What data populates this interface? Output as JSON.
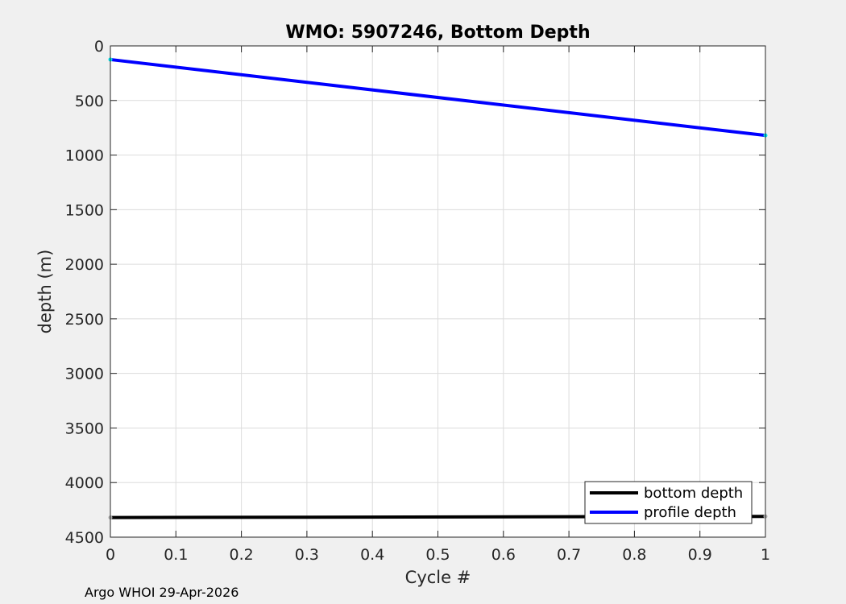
{
  "chart_data": {
    "type": "line",
    "title": "WMO: 5907246, Bottom Depth",
    "xlabel": "Cycle #",
    "ylabel": "depth (m)",
    "xlim": [
      0,
      1
    ],
    "ylim": [
      0,
      4500
    ],
    "y_reversed": true,
    "grid": true,
    "xticks": [
      0,
      0.1,
      0.2,
      0.3,
      0.4,
      0.5,
      0.6,
      0.7,
      0.8,
      0.9,
      1
    ],
    "xtick_labels": [
      "0",
      "0.1",
      "0.2",
      "0.3",
      "0.4",
      "0.5",
      "0.6",
      "0.7",
      "0.8",
      "0.9",
      "1"
    ],
    "yticks": [
      0,
      500,
      1000,
      1500,
      2000,
      2500,
      3000,
      3500,
      4000,
      4500
    ],
    "ytick_labels": [
      "0",
      "500",
      "1000",
      "1500",
      "2000",
      "2500",
      "3000",
      "3500",
      "4000",
      "4500"
    ],
    "legend_location": "bottom-right",
    "series": [
      {
        "name": "bottom depth",
        "color": "#000000",
        "marker_color": "#aaaaaa",
        "x": [
          0,
          1
        ],
        "y": [
          4320,
          4310
        ]
      },
      {
        "name": "profile depth",
        "color": "#0000ff",
        "marker_color": "#00e5ee",
        "x": [
          0,
          1
        ],
        "y": [
          125,
          820
        ]
      }
    ]
  },
  "footer": "Argo WHOI 29-Apr-2026"
}
